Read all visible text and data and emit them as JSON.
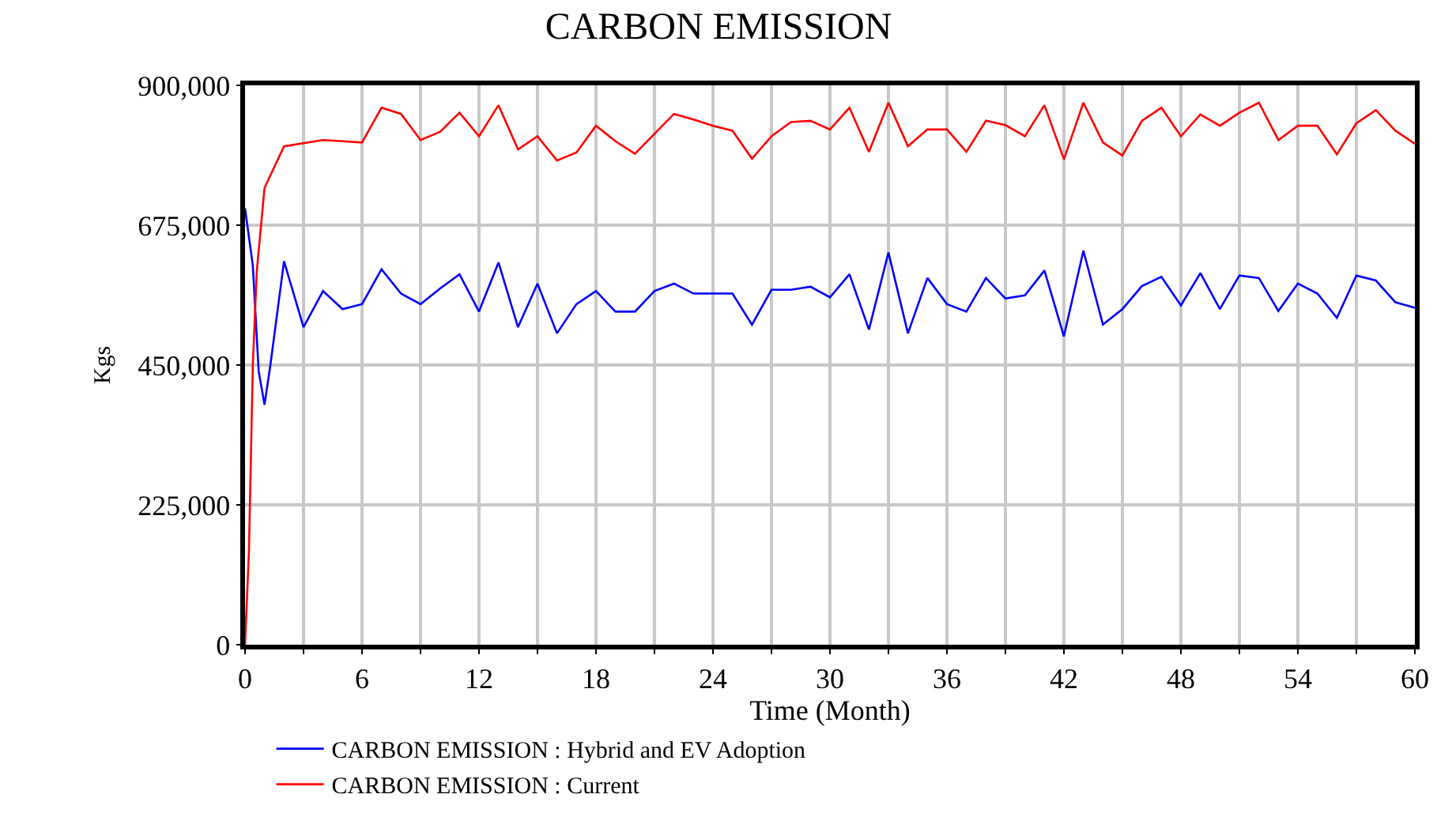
{
  "chart_data": {
    "type": "line",
    "title": "CARBON EMISSION",
    "xlabel": "Time (Month)",
    "ylabel": "Kgs",
    "xlim": [
      0,
      60
    ],
    "ylim": [
      0,
      900000
    ],
    "xticks": [
      0,
      {
        "value": 3,
        "label": null
      },
      6,
      {
        "value": 9,
        "label": null
      },
      12,
      {
        "value": 15,
        "label": null
      },
      18,
      {
        "value": 21,
        "label": null
      },
      24,
      {
        "value": 27,
        "label": null
      },
      30,
      {
        "value": 33,
        "label": null
      },
      36,
      {
        "value": 39,
        "label": null
      },
      42,
      {
        "value": 45,
        "label": null
      },
      48,
      {
        "value": 51,
        "label": null
      },
      54,
      {
        "value": 57,
        "label": null
      },
      60
    ],
    "yticks": [
      {
        "value": 0,
        "label": "0"
      },
      {
        "value": 225000,
        "label": "225,000"
      },
      {
        "value": 450000,
        "label": "450,000"
      },
      {
        "value": 675000,
        "label": "675,000"
      },
      {
        "value": 900000,
        "label": "900,000"
      }
    ],
    "grid": true,
    "legend": "bottom",
    "marker": "none",
    "line_style": "solid",
    "series": [
      {
        "name": "CARBON EMISSION : Hybrid and EV Adoption",
        "color": "#0000ff",
        "x": [
          0,
          0.4,
          0.7,
          1,
          1.3,
          2,
          3,
          4,
          5,
          6,
          7,
          8,
          9,
          10,
          11,
          12,
          13,
          14,
          15,
          16,
          17,
          18,
          19,
          20,
          21,
          22,
          23,
          24,
          25,
          26,
          27,
          28,
          29,
          30,
          31,
          32,
          33,
          34,
          35,
          36,
          37,
          38,
          39,
          40,
          41,
          42,
          43,
          44,
          45,
          46,
          47,
          48,
          49,
          50,
          51,
          52,
          53,
          54,
          55,
          56,
          57,
          58,
          59,
          60
        ],
        "values": [
          702000,
          610000,
          440000,
          386000,
          450000,
          617000,
          511000,
          569000,
          540000,
          548000,
          604000,
          565000,
          548000,
          573000,
          596000,
          536000,
          615000,
          511000,
          581000,
          501000,
          548000,
          569000,
          536000,
          536000,
          569000,
          581000,
          565000,
          565000,
          565000,
          515000,
          571000,
          571000,
          576000,
          559000,
          596000,
          507000,
          631000,
          501000,
          590000,
          548000,
          536000,
          590000,
          557000,
          562000,
          602000,
          496000,
          634000,
          515000,
          540000,
          577000,
          592000,
          546000,
          598000,
          540000,
          594000,
          590000,
          537000,
          581000,
          565000,
          526000,
          594000,
          586000,
          551000,
          542000
        ]
      },
      {
        "name": "CARBON EMISSION : Current",
        "color": "#ff0000",
        "x": [
          0,
          0.2,
          0.4,
          0.6,
          1,
          2,
          3,
          4,
          5,
          6,
          7,
          8,
          9,
          10,
          11,
          12,
          13,
          14,
          15,
          16,
          17,
          18,
          19,
          20,
          21,
          22,
          23,
          24,
          25,
          26,
          27,
          28,
          29,
          30,
          31,
          32,
          33,
          34,
          35,
          36,
          37,
          38,
          39,
          40,
          41,
          42,
          43,
          44,
          45,
          46,
          47,
          48,
          49,
          50,
          51,
          52,
          53,
          54,
          55,
          56,
          57,
          58,
          59,
          60
        ],
        "values": [
          0,
          150000,
          450000,
          600000,
          735000,
          802000,
          807000,
          812000,
          810000,
          808000,
          864000,
          854000,
          812000,
          825000,
          856000,
          818000,
          868000,
          797000,
          818000,
          779000,
          792000,
          835000,
          810000,
          790000,
          822000,
          854000,
          845000,
          835000,
          827000,
          782000,
          818000,
          841000,
          843000,
          829000,
          864000,
          793000,
          872000,
          802000,
          829000,
          829000,
          793000,
          843000,
          836000,
          818000,
          868000,
          781000,
          872000,
          808000,
          787000,
          843000,
          864000,
          818000,
          853000,
          835000,
          856000,
          872000,
          812000,
          835000,
          835000,
          789000,
          839000,
          860000,
          827000,
          806000
        ]
      }
    ]
  }
}
